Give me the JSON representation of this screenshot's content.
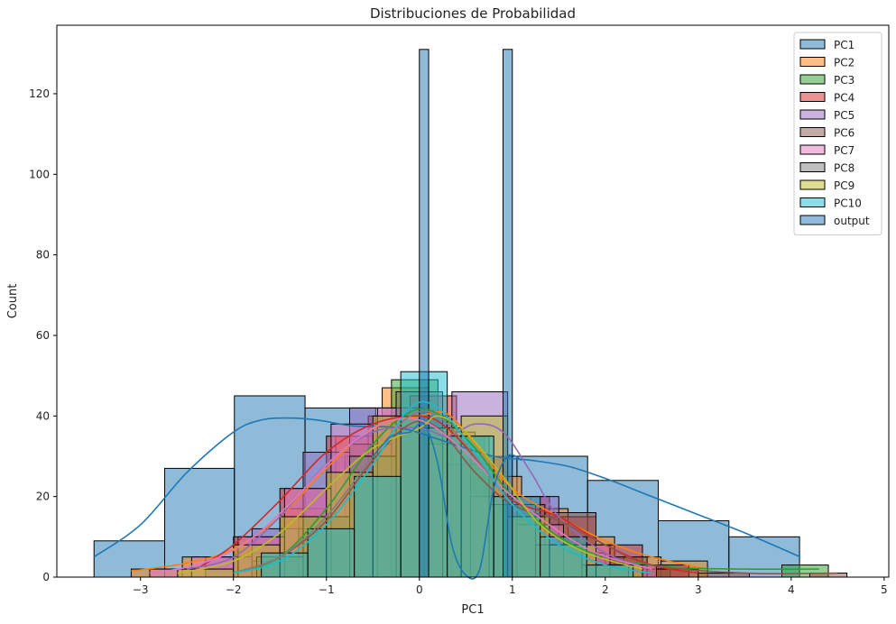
{
  "chart_data": {
    "type": "histogram",
    "title": "Distribuciones de Probabilidad",
    "xlabel": "PC1",
    "ylabel": "Count",
    "xlim": [
      -3.9,
      5.05
    ],
    "ylim": [
      0,
      137
    ],
    "xticks": [
      -3,
      -2,
      -1,
      0,
      1,
      2,
      3,
      4,
      5
    ],
    "yticks": [
      0,
      20,
      40,
      60,
      80,
      100,
      120
    ],
    "grid": false,
    "legend_position": "top-right",
    "series": [
      {
        "name": "PC1",
        "color": "#1f77b4",
        "bins": [
          [
            -3.5,
            -2.74,
            9
          ],
          [
            -2.74,
            -1.99,
            27
          ],
          [
            -1.99,
            -1.23,
            45
          ],
          [
            -1.23,
            -0.47,
            42
          ],
          [
            -0.47,
            0.29,
            40
          ],
          [
            0.29,
            1.05,
            30
          ],
          [
            1.05,
            1.81,
            30
          ],
          [
            1.81,
            2.57,
            24
          ],
          [
            2.57,
            3.33,
            14
          ],
          [
            3.33,
            4.09,
            10
          ]
        ],
        "kde": [
          [
            -3.5,
            5
          ],
          [
            -3.0,
            13
          ],
          [
            -2.5,
            26
          ],
          [
            -2.0,
            36
          ],
          [
            -1.7,
            39
          ],
          [
            -1.4,
            39.5
          ],
          [
            -1.1,
            39
          ],
          [
            -0.7,
            37.5
          ],
          [
            -0.2,
            37
          ],
          [
            0.3,
            33.5
          ],
          [
            0.8,
            30
          ],
          [
            1.2,
            29
          ],
          [
            1.6,
            27.5
          ],
          [
            2.0,
            24.5
          ],
          [
            2.5,
            20
          ],
          [
            3.0,
            15.5
          ],
          [
            3.5,
            11
          ],
          [
            4.1,
            5
          ]
        ]
      },
      {
        "name": "PC2",
        "color": "#ff7f0e",
        "bins": [
          [
            -3.1,
            -2.55,
            2
          ],
          [
            -2.55,
            -2.0,
            5
          ],
          [
            -2.0,
            -1.45,
            8
          ],
          [
            -1.45,
            -0.9,
            17
          ],
          [
            -0.9,
            -0.4,
            35
          ],
          [
            -0.4,
            0.1,
            47
          ],
          [
            0.1,
            0.6,
            36
          ],
          [
            0.6,
            1.1,
            25
          ],
          [
            1.1,
            1.6,
            17
          ],
          [
            1.6,
            2.1,
            10
          ],
          [
            2.1,
            2.6,
            5
          ],
          [
            2.6,
            3.1,
            4
          ]
        ],
        "kde": [
          [
            -3.1,
            1.5
          ],
          [
            -2.5,
            3.5
          ],
          [
            -2.0,
            7
          ],
          [
            -1.5,
            15
          ],
          [
            -1.0,
            27
          ],
          [
            -0.5,
            37
          ],
          [
            0.0,
            40
          ],
          [
            0.3,
            40.5
          ],
          [
            0.6,
            33
          ],
          [
            1.0,
            22
          ],
          [
            1.5,
            15
          ],
          [
            2.0,
            9
          ],
          [
            2.5,
            5
          ],
          [
            3.1,
            2
          ]
        ]
      },
      {
        "name": "PC3",
        "color": "#2ca02c",
        "bins": [
          [
            -1.8,
            -1.3,
            6
          ],
          [
            -1.3,
            -0.8,
            15
          ],
          [
            -0.8,
            -0.3,
            30
          ],
          [
            -0.3,
            0.2,
            49
          ],
          [
            0.2,
            0.7,
            35
          ],
          [
            0.7,
            1.2,
            20
          ],
          [
            1.2,
            1.7,
            10
          ],
          [
            1.7,
            2.2,
            5
          ],
          [
            2.2,
            2.7,
            2
          ],
          [
            3.9,
            4.4,
            3
          ]
        ],
        "kde": [
          [
            -2.0,
            1
          ],
          [
            -1.5,
            5
          ],
          [
            -1.0,
            17
          ],
          [
            -0.5,
            33
          ],
          [
            -0.1,
            41
          ],
          [
            0.2,
            40.5
          ],
          [
            0.6,
            32
          ],
          [
            1.0,
            20
          ],
          [
            1.5,
            10
          ],
          [
            2.0,
            5
          ],
          [
            2.7,
            2.5
          ],
          [
            3.5,
            2
          ],
          [
            4.3,
            2
          ]
        ]
      },
      {
        "name": "PC4",
        "color": "#d62728",
        "bins": [
          [
            -2.0,
            -1.5,
            10
          ],
          [
            -1.5,
            -1.0,
            22
          ],
          [
            -1.0,
            -0.55,
            35
          ],
          [
            -0.55,
            -0.1,
            40
          ],
          [
            -0.1,
            0.4,
            45
          ],
          [
            0.4,
            0.9,
            30
          ],
          [
            0.9,
            1.4,
            20
          ],
          [
            1.4,
            1.9,
            15
          ],
          [
            1.9,
            2.4,
            8
          ],
          [
            2.4,
            2.9,
            3
          ]
        ],
        "kde": [
          [
            -2.4,
            2
          ],
          [
            -2.0,
            8
          ],
          [
            -1.5,
            19
          ],
          [
            -1.0,
            31
          ],
          [
            -0.5,
            38
          ],
          [
            0.0,
            40
          ],
          [
            0.3,
            37
          ],
          [
            0.7,
            27
          ],
          [
            1.0,
            19
          ],
          [
            1.5,
            15
          ],
          [
            2.0,
            8
          ],
          [
            2.5,
            3
          ],
          [
            3.0,
            1
          ]
        ]
      },
      {
        "name": "PC5",
        "color": "#9467bd",
        "bins": [
          [
            -2.3,
            -1.8,
            5
          ],
          [
            -1.8,
            -1.25,
            12
          ],
          [
            -1.25,
            -0.75,
            31
          ],
          [
            -0.75,
            -0.2,
            42
          ],
          [
            -0.2,
            0.35,
            40
          ],
          [
            0.35,
            0.95,
            46
          ],
          [
            0.95,
            1.5,
            20
          ],
          [
            1.5,
            2.0,
            6
          ]
        ],
        "kde": [
          [
            -2.5,
            2
          ],
          [
            -2.0,
            5
          ],
          [
            -1.5,
            15
          ],
          [
            -1.0,
            28
          ],
          [
            -0.5,
            36
          ],
          [
            0.0,
            37
          ],
          [
            0.3,
            35
          ],
          [
            0.6,
            38
          ],
          [
            0.9,
            36
          ],
          [
            1.2,
            26
          ],
          [
            1.5,
            15
          ],
          [
            2.0,
            6
          ],
          [
            2.5,
            2
          ]
        ]
      },
      {
        "name": "PC6",
        "color": "#8c564b",
        "bins": [
          [
            -1.8,
            -1.3,
            4
          ],
          [
            -1.3,
            -0.75,
            12
          ],
          [
            -0.75,
            -0.3,
            33
          ],
          [
            -0.3,
            0.25,
            40
          ],
          [
            0.25,
            0.8,
            28
          ],
          [
            0.8,
            1.35,
            18
          ],
          [
            1.35,
            1.9,
            16
          ],
          [
            1.9,
            2.45,
            5
          ],
          [
            2.45,
            3.0,
            2
          ],
          [
            3.0,
            3.55,
            1
          ],
          [
            4.2,
            4.6,
            1
          ]
        ],
        "kde": [
          [
            -2.0,
            1
          ],
          [
            -1.5,
            5
          ],
          [
            -1.0,
            14
          ],
          [
            -0.5,
            29
          ],
          [
            -0.1,
            38
          ],
          [
            0.2,
            37
          ],
          [
            0.6,
            26
          ],
          [
            1.0,
            18
          ],
          [
            1.5,
            14
          ],
          [
            2.0,
            8
          ],
          [
            2.5,
            3
          ],
          [
            3.5,
            1
          ],
          [
            4.5,
            1
          ]
        ]
      },
      {
        "name": "PC7",
        "color": "#e377c2",
        "bins": [
          [
            -2.9,
            -2.45,
            2
          ],
          [
            -2.45,
            -1.95,
            5
          ],
          [
            -1.95,
            -1.45,
            10
          ],
          [
            -1.45,
            -0.95,
            22
          ],
          [
            -0.95,
            -0.45,
            38
          ],
          [
            -0.45,
            0.05,
            42
          ],
          [
            0.05,
            0.55,
            33
          ],
          [
            0.55,
            1.05,
            20
          ],
          [
            1.05,
            1.55,
            13
          ],
          [
            1.55,
            2.05,
            8
          ],
          [
            2.05,
            2.55,
            3
          ]
        ],
        "kde": [
          [
            -2.9,
            1
          ],
          [
            -2.4,
            3
          ],
          [
            -1.9,
            8
          ],
          [
            -1.4,
            18
          ],
          [
            -0.9,
            30
          ],
          [
            -0.4,
            38
          ],
          [
            0.0,
            39
          ],
          [
            0.4,
            33
          ],
          [
            0.9,
            22
          ],
          [
            1.4,
            13
          ],
          [
            1.9,
            6
          ],
          [
            2.5,
            2
          ]
        ]
      },
      {
        "name": "PC8",
        "color": "#7f7f7f",
        "bins": [
          [
            -1.75,
            -1.25,
            5
          ],
          [
            -1.25,
            -0.75,
            15
          ],
          [
            -0.75,
            -0.25,
            30
          ],
          [
            -0.25,
            0.25,
            46
          ],
          [
            0.25,
            0.75,
            35
          ],
          [
            0.75,
            1.25,
            18
          ],
          [
            1.25,
            1.75,
            8
          ],
          [
            1.75,
            2.25,
            3
          ]
        ],
        "kde": [
          [
            -2.0,
            1
          ],
          [
            -1.5,
            5
          ],
          [
            -1.0,
            15
          ],
          [
            -0.5,
            30
          ],
          [
            -0.1,
            40
          ],
          [
            0.2,
            40
          ],
          [
            0.6,
            30
          ],
          [
            1.0,
            18
          ],
          [
            1.5,
            8
          ],
          [
            2.0,
            3
          ],
          [
            2.5,
            1
          ]
        ]
      },
      {
        "name": "PC9",
        "color": "#bcbd22",
        "bins": [
          [
            -2.6,
            -2.0,
            2
          ],
          [
            -2.0,
            -1.5,
            8
          ],
          [
            -1.5,
            -1.0,
            15
          ],
          [
            -1.0,
            -0.5,
            26
          ],
          [
            -0.5,
            0.0,
            40
          ],
          [
            0.0,
            0.45,
            37
          ],
          [
            0.45,
            0.95,
            40
          ],
          [
            0.95,
            1.4,
            15
          ],
          [
            1.4,
            1.9,
            8
          ],
          [
            1.9,
            2.4,
            3
          ]
        ],
        "kde": [
          [
            -2.6,
            1
          ],
          [
            -2.0,
            4
          ],
          [
            -1.5,
            11
          ],
          [
            -1.0,
            22
          ],
          [
            -0.5,
            32
          ],
          [
            0.0,
            37
          ],
          [
            0.2,
            40
          ],
          [
            0.5,
            36
          ],
          [
            0.9,
            25
          ],
          [
            1.3,
            13
          ],
          [
            1.8,
            6
          ],
          [
            2.4,
            2
          ]
        ]
      },
      {
        "name": "PC10",
        "color": "#17becf",
        "bins": [
          [
            -1.7,
            -1.2,
            6
          ],
          [
            -1.2,
            -0.7,
            12
          ],
          [
            -0.7,
            -0.2,
            25
          ],
          [
            -0.2,
            0.3,
            51
          ],
          [
            0.3,
            0.8,
            35
          ],
          [
            0.8,
            1.3,
            20
          ],
          [
            1.3,
            1.8,
            10
          ],
          [
            1.8,
            2.3,
            3
          ]
        ],
        "kde": [
          [
            -2.0,
            1
          ],
          [
            -1.5,
            4
          ],
          [
            -1.0,
            13
          ],
          [
            -0.5,
            28
          ],
          [
            -0.1,
            42
          ],
          [
            0.2,
            42
          ],
          [
            0.6,
            31
          ],
          [
            1.0,
            18
          ],
          [
            1.5,
            8
          ],
          [
            2.0,
            3
          ],
          [
            2.5,
            1
          ]
        ]
      },
      {
        "name": "output",
        "color": "#1f77b4",
        "bins": [
          [
            0.0,
            0.1,
            131
          ],
          [
            0.9,
            1.0,
            131
          ]
        ],
        "kde": [
          [
            -0.5,
            30
          ],
          [
            -0.3,
            35
          ],
          [
            -0.1,
            36
          ],
          [
            0.05,
            38
          ],
          [
            0.2,
            28
          ],
          [
            0.35,
            8
          ],
          [
            0.5,
            0.5
          ],
          [
            0.65,
            2
          ],
          [
            0.8,
            22
          ],
          [
            0.95,
            30
          ],
          [
            1.1,
            29
          ]
        ]
      }
    ]
  }
}
